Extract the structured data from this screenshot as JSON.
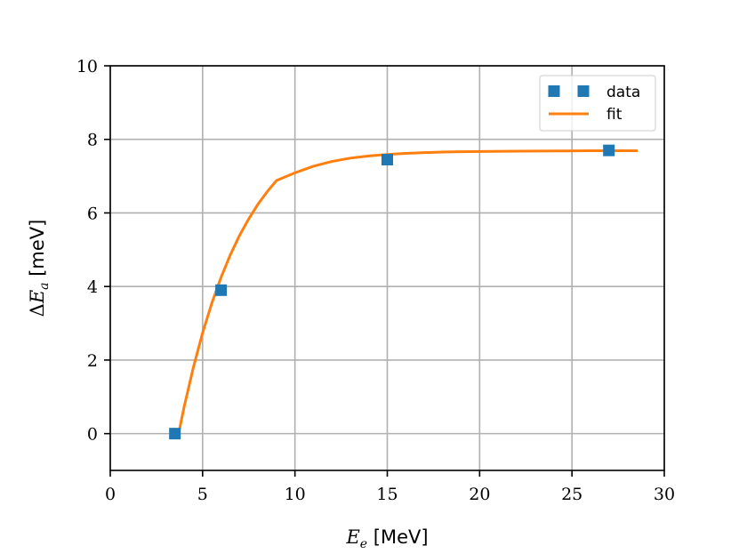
{
  "chart_data": {
    "type": "scatter",
    "xlabel": {
      "sym": "E",
      "sub": "e",
      "unit": " [MeV]"
    },
    "ylabel": {
      "pre": "Δ",
      "sym": "E",
      "sub": "a",
      "unit": " [meV]"
    },
    "xlim": [
      0,
      30
    ],
    "ylim": [
      -1,
      10
    ],
    "x_ticks": [
      0,
      5,
      10,
      15,
      20,
      25,
      30
    ],
    "y_ticks": [
      0,
      2,
      4,
      6,
      8,
      10
    ],
    "grid": true,
    "legend_position": "top-right",
    "series": [
      {
        "name": "data",
        "kind": "markers",
        "marker": "square",
        "color": "#1f77b4",
        "x": [
          3.5,
          6,
          15,
          27
        ],
        "y": [
          0,
          3.9,
          7.45,
          7.7
        ]
      },
      {
        "name": "fit",
        "kind": "line",
        "color": "#ff7f0e",
        "x": [
          3.7,
          4.0,
          4.5,
          5.0,
          5.5,
          6.0,
          6.5,
          7.0,
          7.5,
          8.0,
          8.5,
          9.0,
          10.0,
          11.0,
          12.0,
          13.0,
          14.0,
          15.0,
          16.0,
          17.0,
          18.0,
          19.0,
          20.0,
          22.0,
          24.0,
          26.0,
          28.5
        ],
        "y": [
          0.0,
          0.73,
          1.8,
          2.74,
          3.55,
          4.25,
          4.86,
          5.39,
          5.84,
          6.24,
          6.58,
          6.88,
          7.09,
          7.27,
          7.4,
          7.49,
          7.55,
          7.59,
          7.62,
          7.64,
          7.655,
          7.665,
          7.67,
          7.68,
          7.685,
          7.69,
          7.69
        ]
      }
    ]
  }
}
